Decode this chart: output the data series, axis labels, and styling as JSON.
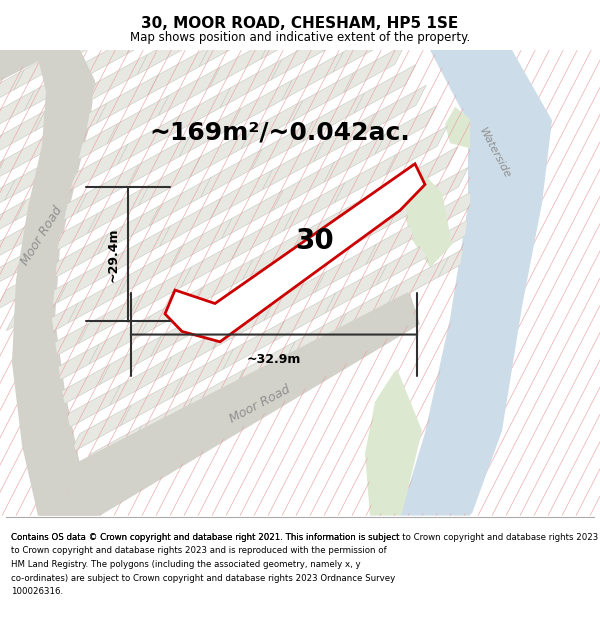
{
  "title": "30, MOOR ROAD, CHESHAM, HP5 1SE",
  "subtitle": "Map shows position and indicative extent of the property.",
  "area_text": "~169m²/~0.042ac.",
  "label_30": "30",
  "dim_height": "~29.4m",
  "dim_width": "~32.9m",
  "road_label_upper": "Moor Road",
  "road_label_lower": "Moor Road",
  "waterside_label": "Waterside",
  "footer": "Contains OS data © Crown copyright and database right 2021. This information is subject to Crown copyright and database rights 2023 and is reproduced with the permission of HM Land Registry. The polygons (including the associated geometry, namely x, y co-ordinates) are subject to Crown copyright and database rights 2023 Ordnance Survey 100026316.",
  "bg_color": "#ffffff",
  "map_bg": "#f0f0eb",
  "block_fill": "#e8e8e3",
  "block_edge": "#c8c8c0",
  "road_fill": "#d2d2ca",
  "water_fill": "#ccdce8",
  "green_fill": "#dce8d0",
  "prop_outline": "#cc0000",
  "prop_fill": "#ffffff",
  "hatch_color": "#e8a0a0",
  "dim_color": "#303030",
  "footer_line_color": "#aaaaaa",
  "title_fontsize": 11,
  "subtitle_fontsize": 8.5,
  "area_fontsize": 18,
  "label_fontsize": 20,
  "dim_fontsize": 9,
  "road_fontsize": 9,
  "footer_fontsize": 6.2,
  "figsize": [
    6.0,
    6.25
  ],
  "dpi": 100
}
